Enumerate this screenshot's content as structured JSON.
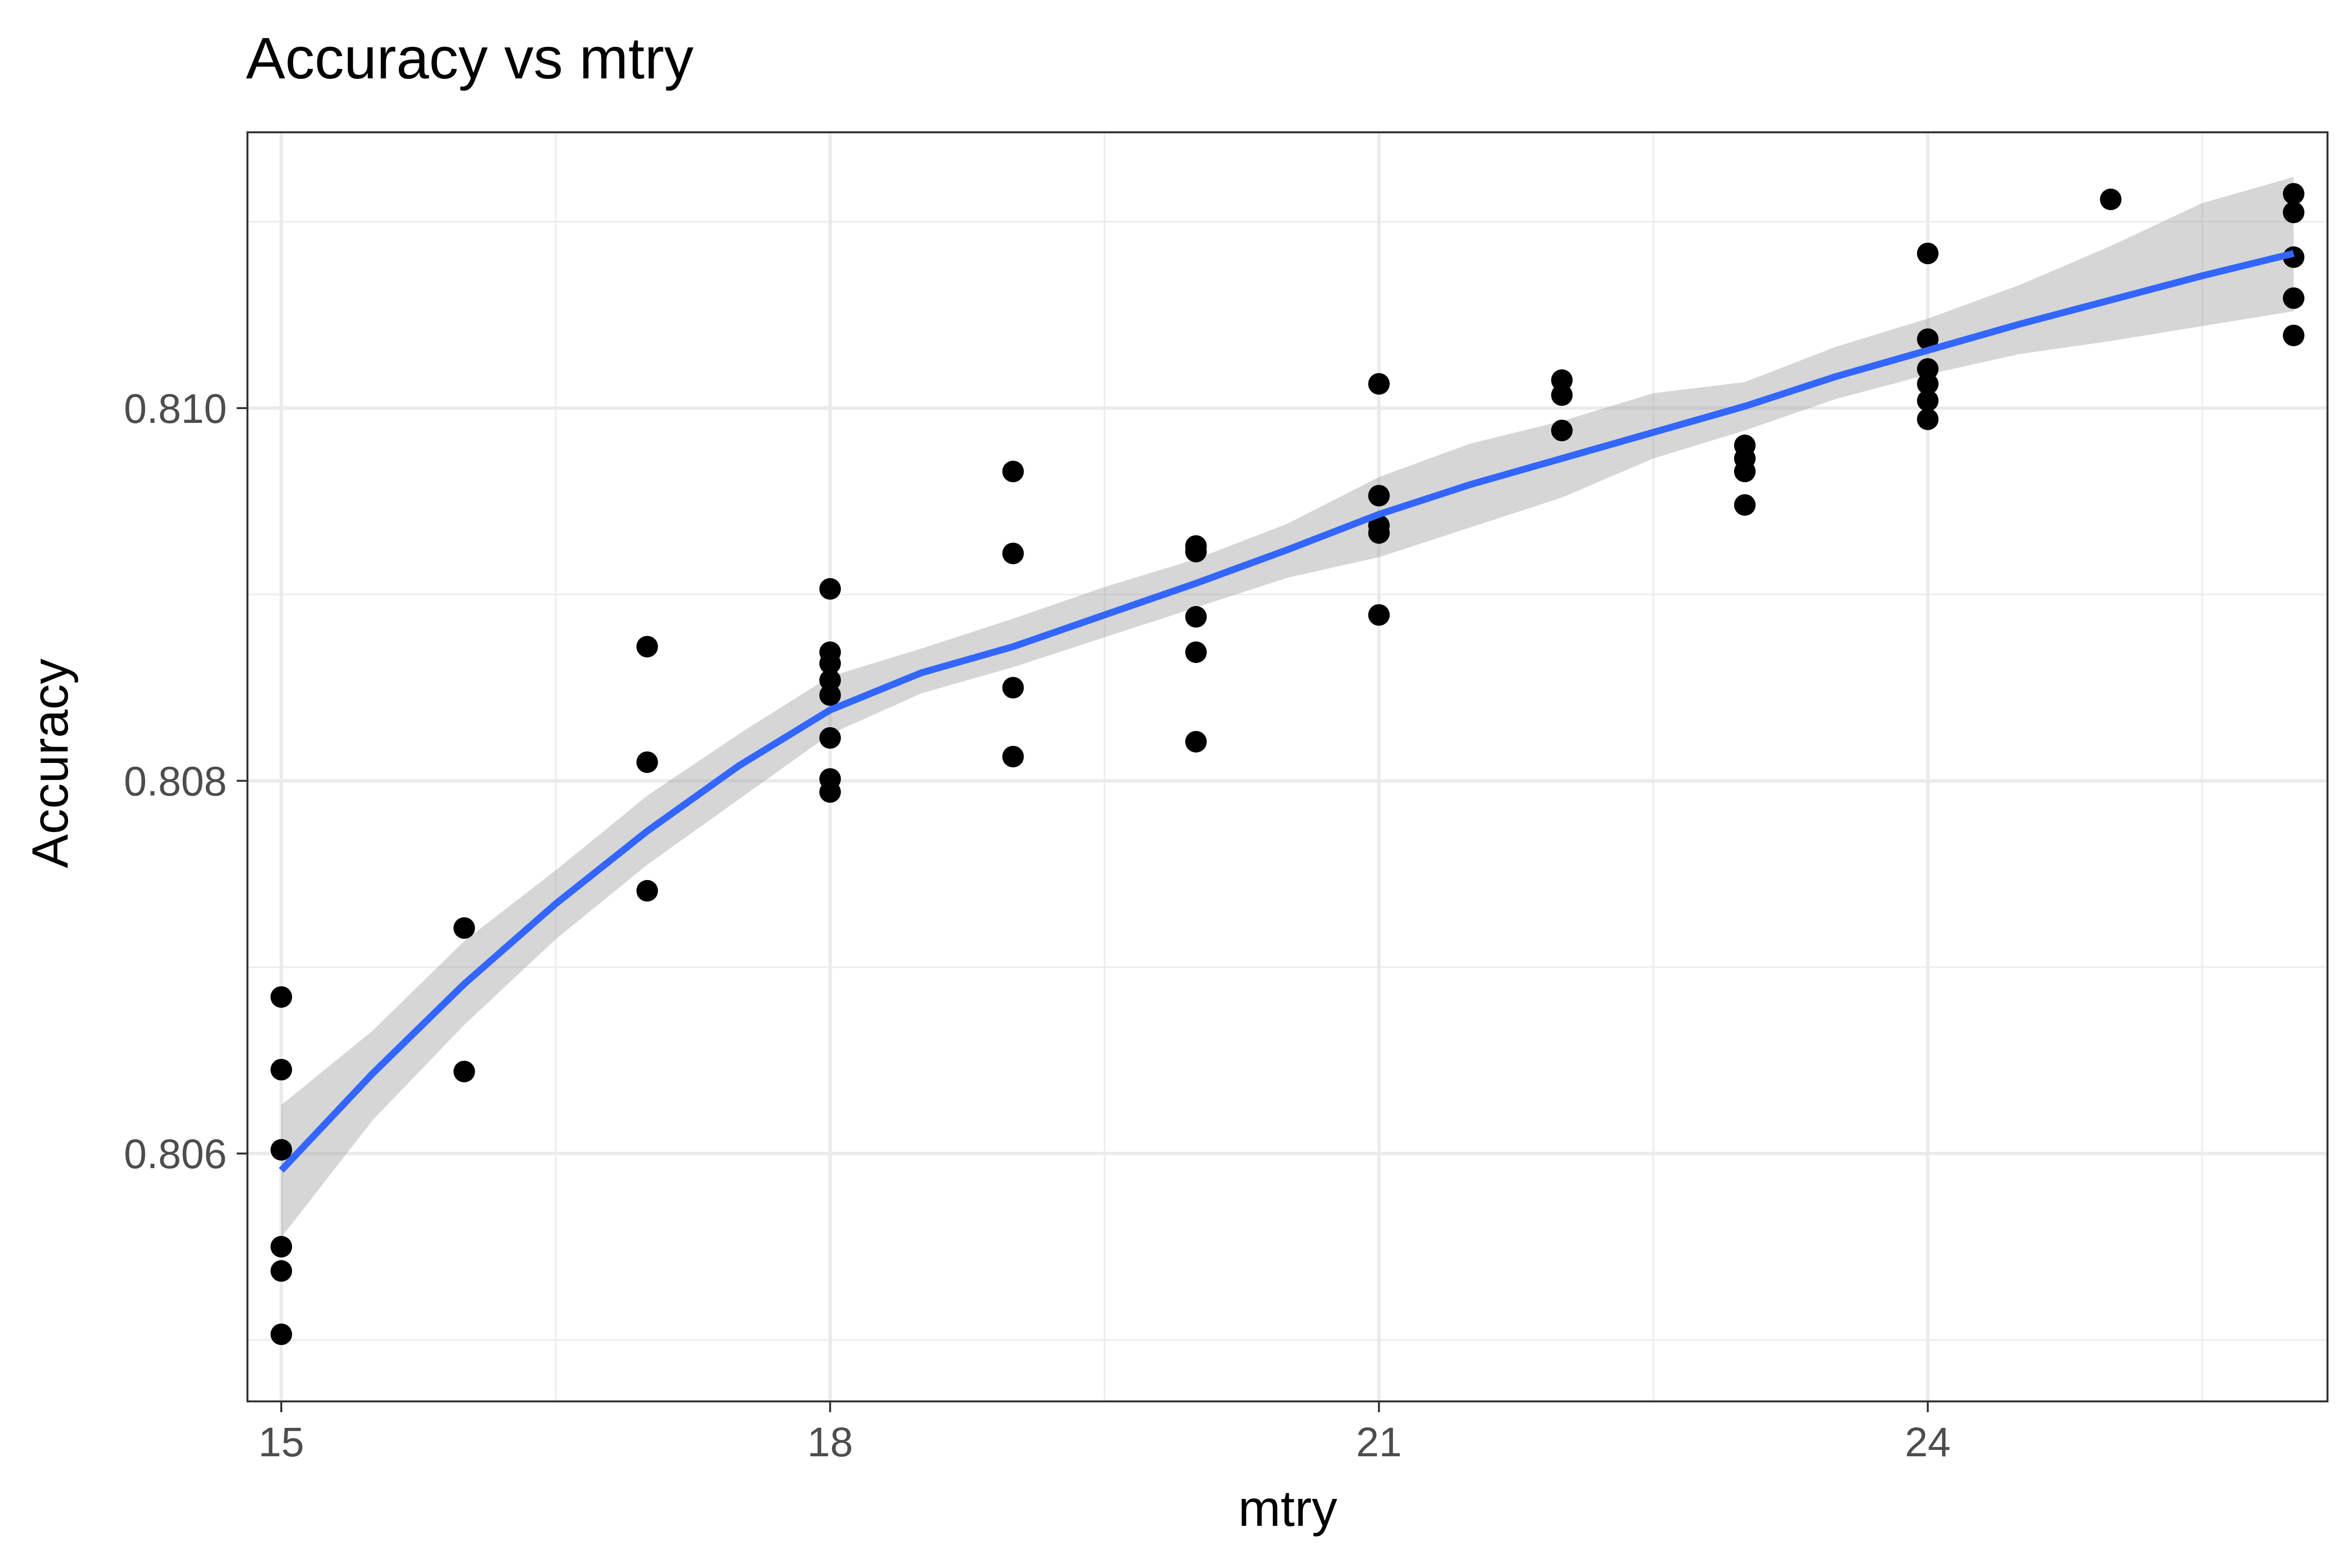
{
  "chart_data": {
    "type": "scatter",
    "title": "Accuracy vs mtry",
    "xlabel": "mtry",
    "ylabel": "Accuracy",
    "xlim": [
      14.815,
      26.185
    ],
    "ylim": [
      0.80467,
      0.81148
    ],
    "x_ticks": [
      15,
      18,
      21,
      24
    ],
    "x_tick_labels": [
      "15",
      "18",
      "21",
      "24"
    ],
    "x_minor_ticks": [
      16.5,
      19.5,
      22.5,
      25.5
    ],
    "y_ticks": [
      0.806,
      0.808,
      0.81
    ],
    "y_tick_labels": [
      "0.806",
      "0.808",
      "0.810"
    ],
    "y_minor_ticks": [
      0.805,
      0.807,
      0.809,
      0.811
    ],
    "grid": true,
    "legend": "none",
    "colors": {
      "points": "#000000",
      "smooth_line": "#3366ff",
      "confidence_band": "#999999",
      "grid": "#ebebeb",
      "panel_border": "#333333"
    },
    "series": [
      {
        "type": "scatter",
        "points": [
          {
            "x": 15,
            "y": 0.80684
          },
          {
            "x": 15,
            "y": 0.80645
          },
          {
            "x": 15,
            "y": 0.80602
          },
          {
            "x": 15,
            "y": 0.8055
          },
          {
            "x": 15,
            "y": 0.80537
          },
          {
            "x": 15,
            "y": 0.80503
          },
          {
            "x": 16,
            "y": 0.80721
          },
          {
            "x": 16,
            "y": 0.80644
          },
          {
            "x": 17,
            "y": 0.80872
          },
          {
            "x": 17,
            "y": 0.8081
          },
          {
            "x": 17,
            "y": 0.80741
          },
          {
            "x": 18,
            "y": 0.80903
          },
          {
            "x": 18,
            "y": 0.80869
          },
          {
            "x": 18,
            "y": 0.80863
          },
          {
            "x": 18,
            "y": 0.80854
          },
          {
            "x": 18,
            "y": 0.80846
          },
          {
            "x": 18,
            "y": 0.80823
          },
          {
            "x": 18,
            "y": 0.80801
          },
          {
            "x": 18,
            "y": 0.80794
          },
          {
            "x": 19,
            "y": 0.80966
          },
          {
            "x": 19,
            "y": 0.80922
          },
          {
            "x": 19,
            "y": 0.8085
          },
          {
            "x": 19,
            "y": 0.80813
          },
          {
            "x": 20,
            "y": 0.80926
          },
          {
            "x": 20,
            "y": 0.80923
          },
          {
            "x": 20,
            "y": 0.80888
          },
          {
            "x": 20,
            "y": 0.80869
          },
          {
            "x": 20,
            "y": 0.80821
          },
          {
            "x": 21,
            "y": 0.81013
          },
          {
            "x": 21,
            "y": 0.80953
          },
          {
            "x": 21,
            "y": 0.80937
          },
          {
            "x": 21,
            "y": 0.80933
          },
          {
            "x": 21,
            "y": 0.80889
          },
          {
            "x": 22,
            "y": 0.81015
          },
          {
            "x": 22,
            "y": 0.81007
          },
          {
            "x": 22,
            "y": 0.80988
          },
          {
            "x": 23,
            "y": 0.8098
          },
          {
            "x": 23,
            "y": 0.80973
          },
          {
            "x": 23,
            "y": 0.80966
          },
          {
            "x": 23,
            "y": 0.80948
          },
          {
            "x": 24,
            "y": 0.81083
          },
          {
            "x": 24,
            "y": 0.81037
          },
          {
            "x": 24,
            "y": 0.81021
          },
          {
            "x": 24,
            "y": 0.81013
          },
          {
            "x": 24,
            "y": 0.81004
          },
          {
            "x": 24,
            "y": 0.80994
          },
          {
            "x": 25,
            "y": 0.81112
          },
          {
            "x": 26,
            "y": 0.81115
          },
          {
            "x": 26,
            "y": 0.81105
          },
          {
            "x": 26,
            "y": 0.81081
          },
          {
            "x": 26,
            "y": 0.81059
          },
          {
            "x": 26,
            "y": 0.81039
          }
        ]
      },
      {
        "type": "smooth",
        "x": [
          15,
          15.5,
          16,
          16.5,
          17,
          17.5,
          18,
          18.5,
          19,
          19.5,
          20,
          20.5,
          21,
          21.5,
          22,
          22.5,
          23,
          23.5,
          24,
          24.5,
          25,
          25.5,
          26
        ],
        "y": [
          0.80591,
          0.80643,
          0.80691,
          0.80734,
          0.80773,
          0.80808,
          0.80838,
          0.80858,
          0.80872,
          0.80889,
          0.80906,
          0.80924,
          0.80943,
          0.80959,
          0.80973,
          0.80987,
          0.81001,
          0.81017,
          0.81031,
          0.81045,
          0.81058,
          0.81071,
          0.81083
        ],
        "lower": [
          0.80555,
          0.80618,
          0.80669,
          0.80715,
          0.80755,
          0.8079,
          0.80825,
          0.80847,
          0.80861,
          0.80877,
          0.80893,
          0.80909,
          0.8092,
          0.80936,
          0.80952,
          0.80973,
          0.80988,
          0.81005,
          0.81018,
          0.81029,
          0.81036,
          0.81044,
          0.81052
        ],
        "upper": [
          0.80626,
          0.80666,
          0.80714,
          0.80752,
          0.80792,
          0.80825,
          0.80856,
          0.80871,
          0.80887,
          0.80904,
          0.80919,
          0.80938,
          0.80963,
          0.80981,
          0.80993,
          0.81008,
          0.81014,
          0.81033,
          0.81048,
          0.81066,
          0.81087,
          0.8111,
          0.81124
        ]
      }
    ]
  }
}
